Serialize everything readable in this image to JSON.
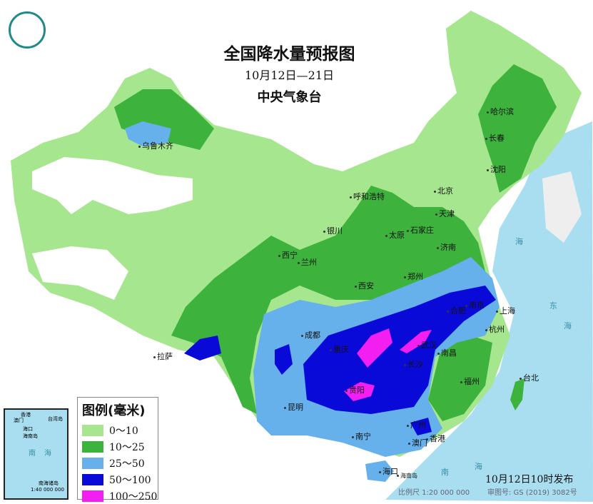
{
  "title": "全国降水量预报图",
  "date_range": "10月12日—21日",
  "issuer": "中央气象台",
  "legend": {
    "title": "图例(毫米)",
    "items": [
      {
        "label": "0～10",
        "color": "#a6e68e"
      },
      {
        "label": "10～25",
        "color": "#3db23d"
      },
      {
        "label": "25～50",
        "color": "#66b0ec"
      },
      {
        "label": "50～100",
        "color": "#0a0ad8"
      },
      {
        "label": "100～250",
        "color": "#f21ef2"
      }
    ]
  },
  "cities": [
    "乌鲁木齐",
    "哈尔滨",
    "长春",
    "沈阳",
    "呼和浩特",
    "北京",
    "天津",
    "银川",
    "太原",
    "石家庄",
    "济南",
    "西宁",
    "兰州",
    "郑州",
    "西安",
    "合肥",
    "南京",
    "上海",
    "杭州",
    "拉萨",
    "成都",
    "武汉",
    "重庆",
    "长沙",
    "南昌",
    "福州",
    "台北",
    "贵阳",
    "昆明",
    "南宁",
    "广州",
    "香港",
    "澳门",
    "海口",
    "海南岛"
  ],
  "seas": [
    "海",
    "东",
    "海",
    "南",
    "海"
  ],
  "inset": {
    "labels": [
      "香港",
      "澳门",
      "台湾岛",
      "海口",
      "海南岛",
      "南",
      "海",
      "南海诸岛"
    ],
    "scale": "1:40 000 000"
  },
  "footer": {
    "issued": "10月12日10时发布",
    "scale": "比例尺 1:20 000 000",
    "approval": "审图号: GS (2019) 3082号"
  }
}
